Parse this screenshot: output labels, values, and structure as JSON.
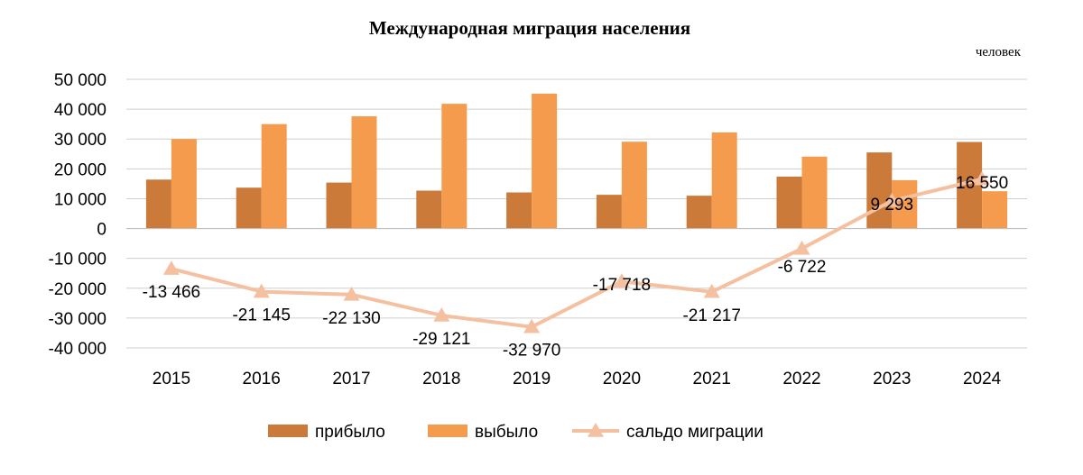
{
  "chart_data": {
    "type": "bar",
    "title": "Международная миграция населения",
    "unit_label": "человек",
    "categories": [
      "2015",
      "2016",
      "2017",
      "2018",
      "2019",
      "2020",
      "2021",
      "2022",
      "2023",
      "2024"
    ],
    "ylim": [
      -40000,
      50000
    ],
    "ytick_step": 10000,
    "ytick_labels": [
      "-40 000",
      "-30 000",
      "-20 000",
      "-10 000",
      "0",
      "10 000",
      "20 000",
      "30 000",
      "40 000",
      "50 000"
    ],
    "grid": true,
    "legend_position": "bottom",
    "series": [
      {
        "name": "прибыло",
        "type": "bar",
        "color": "#cc7a3a",
        "values": [
          16400,
          13700,
          15400,
          12700,
          12100,
          11300,
          11000,
          17400,
          25500,
          29000
        ]
      },
      {
        "name": "выбыло",
        "type": "bar",
        "color": "#f59b4e",
        "values": [
          30000,
          35000,
          37600,
          41800,
          45200,
          29100,
          32200,
          24100,
          16200,
          12500
        ]
      },
      {
        "name": "сальдо миграции",
        "type": "line",
        "color": "#f5c0a0",
        "values": [
          -13466,
          -21145,
          -22130,
          -29121,
          -32970,
          -17718,
          -21217,
          -6722,
          9293,
          16550
        ],
        "data_labels": [
          "-13 466",
          "-21 145",
          "-22 130",
          "-29 121",
          "-32 970",
          "-17 718",
          "-21 217",
          "-6 722",
          "9 293",
          "16 550"
        ]
      }
    ]
  }
}
